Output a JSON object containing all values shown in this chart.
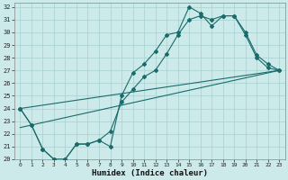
{
  "xlabel": "Humidex (Indice chaleur)",
  "bg_color": "#cceaea",
  "grid_color": "#a8d0d0",
  "line_color": "#1a6b6b",
  "xlim": [
    -0.5,
    23.5
  ],
  "ylim": [
    20,
    32.3
  ],
  "xticks": [
    0,
    1,
    2,
    3,
    4,
    5,
    6,
    7,
    8,
    9,
    10,
    11,
    12,
    13,
    14,
    15,
    16,
    17,
    18,
    19,
    20,
    21,
    22,
    23
  ],
  "yticks": [
    20,
    21,
    22,
    23,
    24,
    25,
    26,
    27,
    28,
    29,
    30,
    31,
    32
  ],
  "line1_x": [
    0,
    1,
    2,
    3,
    4,
    5,
    6,
    7,
    8,
    9,
    10,
    11,
    12,
    13,
    14,
    15,
    16,
    17,
    18,
    19,
    20,
    21,
    22,
    23
  ],
  "line1_y": [
    24,
    22.7,
    20.8,
    20.0,
    20.0,
    21.2,
    21.2,
    21.5,
    21.0,
    25.0,
    26.8,
    27.5,
    28.5,
    29.8,
    30.0,
    32.0,
    31.5,
    30.5,
    31.3,
    31.3,
    30.0,
    28.2,
    27.5,
    27.0
  ],
  "line2_x": [
    0,
    1,
    2,
    3,
    4,
    5,
    6,
    7,
    8,
    9,
    10,
    11,
    12,
    13,
    14,
    15,
    16,
    17,
    18,
    19,
    20,
    21,
    22,
    23
  ],
  "line2_y": [
    24,
    22.7,
    20.8,
    20.0,
    20.0,
    21.2,
    21.2,
    21.5,
    22.2,
    24.5,
    25.5,
    26.5,
    27.0,
    28.3,
    29.8,
    31.0,
    31.3,
    31.0,
    31.3,
    31.3,
    29.8,
    28.0,
    27.2,
    27.0
  ],
  "line3_x": [
    0,
    23
  ],
  "line3_y": [
    22.5,
    27.0
  ],
  "line4_x": [
    0,
    23
  ],
  "line4_y": [
    24.0,
    27.0
  ],
  "markersize": 2.0
}
